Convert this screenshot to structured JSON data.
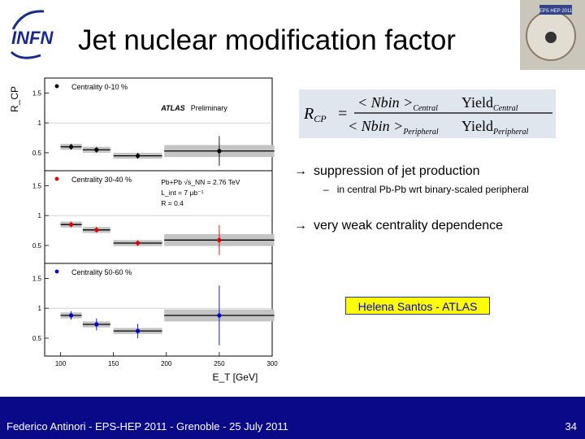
{
  "slide": {
    "title": "Jet nuclear modification factor",
    "logo_text": "INFN",
    "corner_image_label": "EPS HEP 2011",
    "formula": {
      "lhs": "R",
      "lhs_sub": "CP",
      "num_nbin": "< Nbin >",
      "num_nbin_sub": "Central",
      "num_yield": "Yield",
      "num_yield_sub": "Central",
      "den_nbin": "< Nbin >",
      "den_nbin_sub": "Peripheral",
      "den_yield": "Yield",
      "den_yield_sub": "Peripheral"
    },
    "bullets": [
      {
        "arrow": "→",
        "text": "suppression of jet production"
      },
      {
        "arrow": "→",
        "text": "very weak centrality dependence"
      }
    ],
    "sub_bullet": {
      "dash": "–",
      "text": "in central Pb-Pb wrt binary-scaled peripheral"
    },
    "presenter_label": "Helena Santos - ATLAS",
    "footer": "Federico Antinori - EPS-HEP 2011 - Grenoble - 25 July 2011",
    "page_number": "34"
  },
  "chart_data": {
    "type": "scatter",
    "ylabel": "R_CP",
    "xlabel": "E_T [GeV]",
    "xlim": [
      85,
      300
    ],
    "ylim": [
      0.2,
      1.75
    ],
    "x_ticks": [
      "100",
      "150",
      "200",
      "250",
      "300"
    ],
    "y_ticks": [
      "0.5",
      "1",
      "1.5"
    ],
    "annotations": {
      "experiment": "ATLAS",
      "status": "Preliminary",
      "collision": "Pb+Pb √s_NN = 2.76 TeV",
      "lumi": "L_int = 7 μb⁻¹",
      "radius": "R = 0.4"
    },
    "panels": [
      {
        "name": "Centrality 0-10 %",
        "color": "#000000",
        "points": [
          {
            "x": 110,
            "y": 0.6,
            "xerr": 10,
            "yerr": 0.05,
            "sys": 0.05
          },
          {
            "x": 134,
            "y": 0.55,
            "xerr": 13,
            "yerr": 0.05,
            "sys": 0.05
          },
          {
            "x": 173,
            "y": 0.45,
            "xerr": 23,
            "yerr": 0.05,
            "sys": 0.05
          },
          {
            "x": 250,
            "y": 0.53,
            "xerr": 52,
            "yerr": 0.25,
            "sys": 0.1
          }
        ]
      },
      {
        "name": "Centrality 30-40 %",
        "color": "#dd0000",
        "points": [
          {
            "x": 110,
            "y": 0.85,
            "xerr": 10,
            "yerr": 0.05,
            "sys": 0.05
          },
          {
            "x": 134,
            "y": 0.76,
            "xerr": 13,
            "yerr": 0.05,
            "sys": 0.05
          },
          {
            "x": 173,
            "y": 0.54,
            "xerr": 23,
            "yerr": 0.05,
            "sys": 0.05
          },
          {
            "x": 250,
            "y": 0.59,
            "xerr": 52,
            "yerr": 0.25,
            "sys": 0.1
          }
        ]
      },
      {
        "name": "Centrality 50-60 %",
        "color": "#0000cc",
        "points": [
          {
            "x": 110,
            "y": 0.88,
            "xerr": 10,
            "yerr": 0.07,
            "sys": 0.05
          },
          {
            "x": 134,
            "y": 0.73,
            "xerr": 13,
            "yerr": 0.1,
            "sys": 0.05
          },
          {
            "x": 173,
            "y": 0.62,
            "xerr": 23,
            "yerr": 0.12,
            "sys": 0.05
          },
          {
            "x": 250,
            "y": 0.88,
            "xerr": 52,
            "yerr": 0.5,
            "sys": 0.1
          }
        ]
      }
    ]
  }
}
